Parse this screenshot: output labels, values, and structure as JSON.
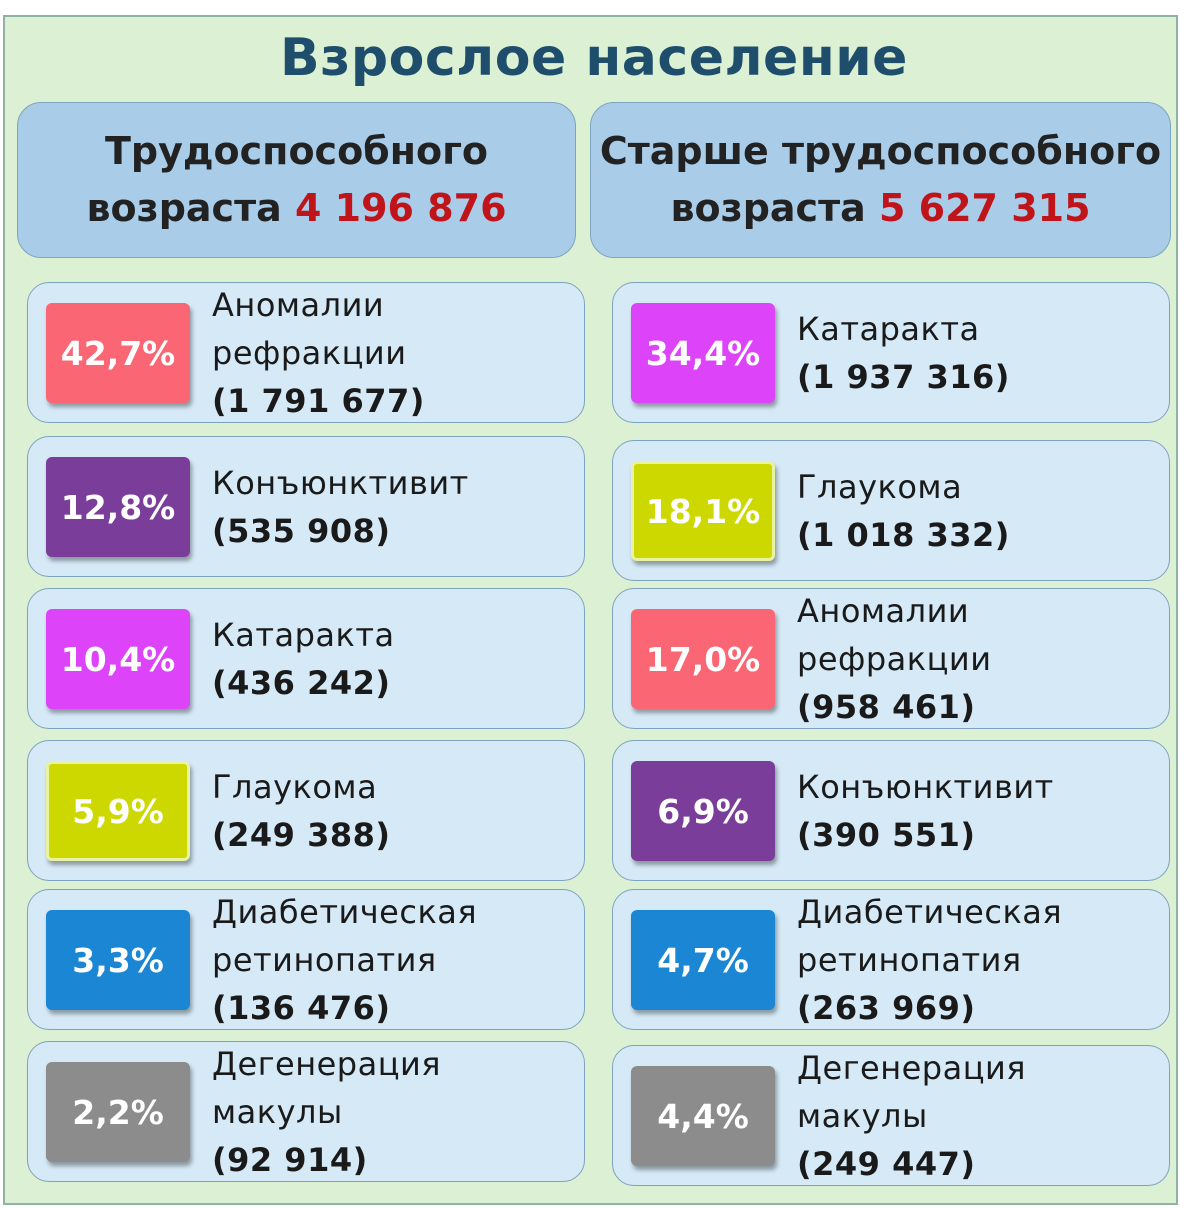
{
  "title": "Взрослое население",
  "columns": [
    {
      "heading_line1": "Трудоспособного",
      "heading_line2": "возраста",
      "total": "4 196 876",
      "items": [
        {
          "percent": "42,7%",
          "lines": [
            "Аномалии",
            "рефракции"
          ],
          "count": "(1 791 677)",
          "color": "#fa6673"
        },
        {
          "percent": "12,8%",
          "lines": [
            "Конъюнктивит"
          ],
          "count": "(535 908)",
          "color": "#7a3e9a"
        },
        {
          "percent": "10,4%",
          "lines": [
            "Катаракта"
          ],
          "count": "(436 242)",
          "color": "#dd44fa"
        },
        {
          "percent": "5,9%",
          "lines": [
            "Глаукома"
          ],
          "count": "(249 388)",
          "color": "#cdd800"
        },
        {
          "percent": "3,3%",
          "lines": [
            "Диабетическая",
            "ретинопатия"
          ],
          "count": "(136 476)",
          "color": "#1a86d4"
        },
        {
          "percent": "2,2%",
          "lines": [
            "Дегенерация",
            "макулы"
          ],
          "count": "(92 914)",
          "color": "#8c8c8c"
        }
      ]
    },
    {
      "heading_line1": "Старше трудоспособного",
      "heading_line2": "возраста",
      "total": "5 627 315",
      "items": [
        {
          "percent": "34,4%",
          "lines": [
            "Катаракта"
          ],
          "count": "(1 937 316)",
          "color": "#dd44fa"
        },
        {
          "percent": "18,1%",
          "lines": [
            "Глаукома"
          ],
          "count": "(1 018 332)",
          "color": "#cdd800"
        },
        {
          "percent": "17,0%",
          "lines": [
            "Аномалии",
            "рефракции"
          ],
          "count": "(958 461)",
          "color": "#fa6673"
        },
        {
          "percent": "6,9%",
          "lines": [
            "Конъюнктивит"
          ],
          "count": "(390 551)",
          "color": "#7a3e9a"
        },
        {
          "percent": "4,7%",
          "lines": [
            "Диабетическая",
            "ретинопатия"
          ],
          "count": "(263 969)",
          "color": "#1a86d4"
        },
        {
          "percent": "4,4%",
          "lines": [
            "Дегенерация",
            "макулы"
          ],
          "count": "(249 447)",
          "color": "#8c8c8c"
        }
      ]
    }
  ]
}
